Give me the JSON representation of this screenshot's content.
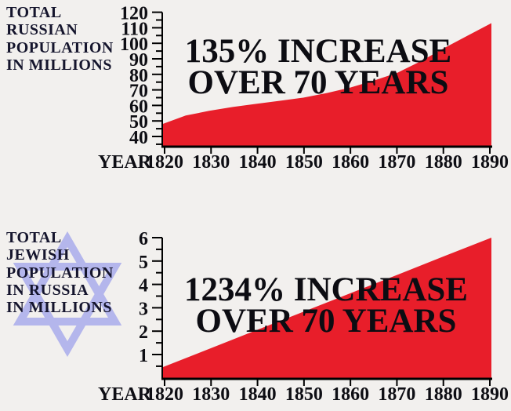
{
  "colors": {
    "background": "#f2f0ee",
    "area_red": "#e81e2a",
    "star_blue": "#b4b6ec",
    "title_text": "#15152d",
    "annotation_text": "#0c0c12",
    "axis_text": "#0e0e14",
    "axis_line": "#000000"
  },
  "star_icon": "star-of-david",
  "chart_data": [
    {
      "type": "area",
      "title_lines": [
        "TOTAL",
        "RUSSIAN",
        "POPULATION",
        "IN MILLIONS"
      ],
      "annotation_lines": [
        "135% INCREASE",
        "OVER 70 YEARS"
      ],
      "x_axis_prefix": "YEAR",
      "x_ticks": [
        1820,
        1830,
        1840,
        1850,
        1860,
        1870,
        1880,
        1890
      ],
      "y_ticks": [
        40,
        50,
        60,
        70,
        80,
        90,
        100,
        110,
        120
      ],
      "y_minor_step": 5,
      "xlim": [
        1820,
        1890
      ],
      "ylim": [
        33.4,
        120
      ],
      "grid": false,
      "legend": "none",
      "series": {
        "name": "Total Russian population in millions",
        "x": [
          1820,
          1825,
          1830,
          1835,
          1840,
          1845,
          1850,
          1855,
          1860,
          1865,
          1870,
          1875,
          1880,
          1885,
          1890
        ],
        "y": [
          48,
          53.5,
          56.5,
          59,
          61,
          63,
          65,
          68,
          71.5,
          76,
          81,
          88.5,
          97,
          105,
          113
        ]
      }
    },
    {
      "type": "area",
      "title_lines": [
        "TOTAL",
        "JEWISH",
        "POPULATION",
        "IN RUSSIA",
        "IN MILLIONS"
      ],
      "annotation_lines": [
        "1234% INCREASE",
        "OVER 70 YEARS"
      ],
      "x_axis_prefix": "YEAR",
      "x_ticks": [
        1820,
        1830,
        1840,
        1850,
        1860,
        1870,
        1880,
        1890
      ],
      "y_ticks": [
        1,
        2,
        3,
        4,
        5,
        6
      ],
      "y_minor_step": 0.5,
      "xlim": [
        1820,
        1890
      ],
      "ylim": [
        0,
        6
      ],
      "grid": false,
      "legend": "none",
      "series": {
        "name": "Total Jewish population in Russia in millions",
        "x": [
          1820,
          1830,
          1840,
          1850,
          1860,
          1870,
          1880,
          1890
        ],
        "y": [
          0.45,
          1.24,
          2.04,
          2.83,
          3.62,
          4.41,
          5.21,
          6.0
        ]
      }
    }
  ]
}
